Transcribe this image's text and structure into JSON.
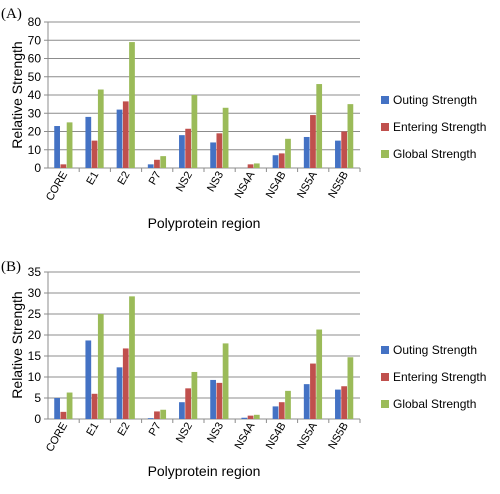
{
  "chart_data": [
    {
      "type": "bar",
      "panel_label": "(A)",
      "categories": [
        "CORE",
        "E1",
        "E2",
        "P7",
        "NS2",
        "NS3",
        "NS4A",
        "NS4B",
        "NS5A",
        "NS5B"
      ],
      "series": [
        {
          "name": "Outing Strength",
          "color": "#4472c4",
          "values": [
            23,
            28,
            32,
            2,
            18,
            14,
            0,
            7,
            17,
            15
          ]
        },
        {
          "name": "Entering Strength",
          "color": "#c0504d",
          "values": [
            2,
            15,
            36.5,
            4.5,
            21.5,
            19,
            2,
            8,
            29,
            20
          ]
        },
        {
          "name": "Global Strength",
          "color": "#9bbb59",
          "values": [
            25,
            43,
            69,
            6.5,
            40,
            33,
            2.5,
            16,
            46,
            35
          ]
        }
      ],
      "xlabel": "Polyprotein region",
      "ylabel": "Relative Strength",
      "ylim": [
        0,
        80
      ],
      "yticks": [
        0,
        10,
        20,
        30,
        40,
        50,
        60,
        70,
        80
      ],
      "grid": true,
      "legend_position": "right"
    },
    {
      "type": "bar",
      "panel_label": "(B)",
      "categories": [
        "CORE",
        "E1",
        "E2",
        "P7",
        "NS2",
        "NS3",
        "NS4A",
        "NS4B",
        "NS5A",
        "NS5B"
      ],
      "series": [
        {
          "name": "Outing Strength",
          "color": "#4472c4",
          "values": [
            5,
            18.7,
            12.3,
            0.2,
            4,
            9.3,
            0.3,
            3,
            8.3,
            7
          ]
        },
        {
          "name": "Entering Strength",
          "color": "#c0504d",
          "values": [
            1.7,
            6,
            16.8,
            1.8,
            7.3,
            8.6,
            0.8,
            4,
            13.2,
            7.8
          ]
        },
        {
          "name": "Global Strength",
          "color": "#9bbb59",
          "values": [
            6.3,
            25,
            29.2,
            2.2,
            11.2,
            18,
            1,
            6.7,
            21.3,
            14.7
          ]
        }
      ],
      "xlabel": "Polyprotein region",
      "ylabel": "Relative Strength",
      "ylim": [
        0,
        35
      ],
      "yticks": [
        0,
        5,
        10,
        15,
        20,
        25,
        30,
        35
      ],
      "grid": true,
      "legend_position": "right"
    }
  ]
}
